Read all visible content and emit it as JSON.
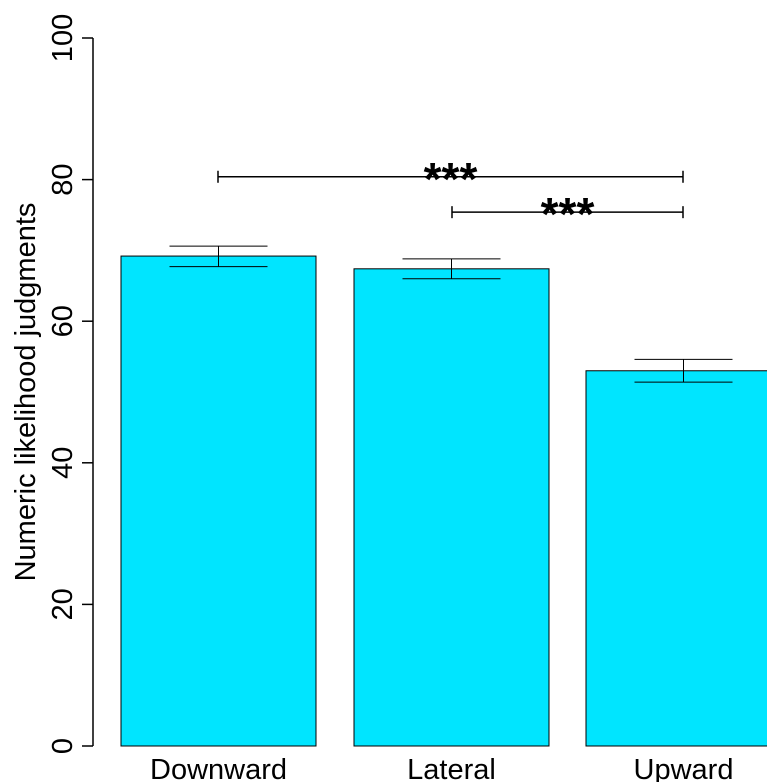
{
  "chart_data": {
    "type": "bar",
    "title": "",
    "xlabel": "",
    "ylabel": "Numeric likelihood judgments",
    "categories": [
      "Downward",
      "Lateral",
      "Upward"
    ],
    "values": [
      69.2,
      67.4,
      53.0
    ],
    "error_bars": [
      {
        "low": 67.7,
        "high": 70.6
      },
      {
        "low": 66.0,
        "high": 68.8
      },
      {
        "low": 51.4,
        "high": 54.6
      }
    ],
    "ylim": [
      0,
      100
    ],
    "yticks": [
      "0",
      "20",
      "40",
      "60",
      "80",
      "100"
    ],
    "grid": false,
    "bar_color": "#00E5FF",
    "significance": [
      {
        "from": "Downward",
        "to": "Upward",
        "level": 80.4,
        "label": "***"
      },
      {
        "from": "Lateral",
        "to": "Upward",
        "level": 75.4,
        "label": "***"
      }
    ]
  }
}
